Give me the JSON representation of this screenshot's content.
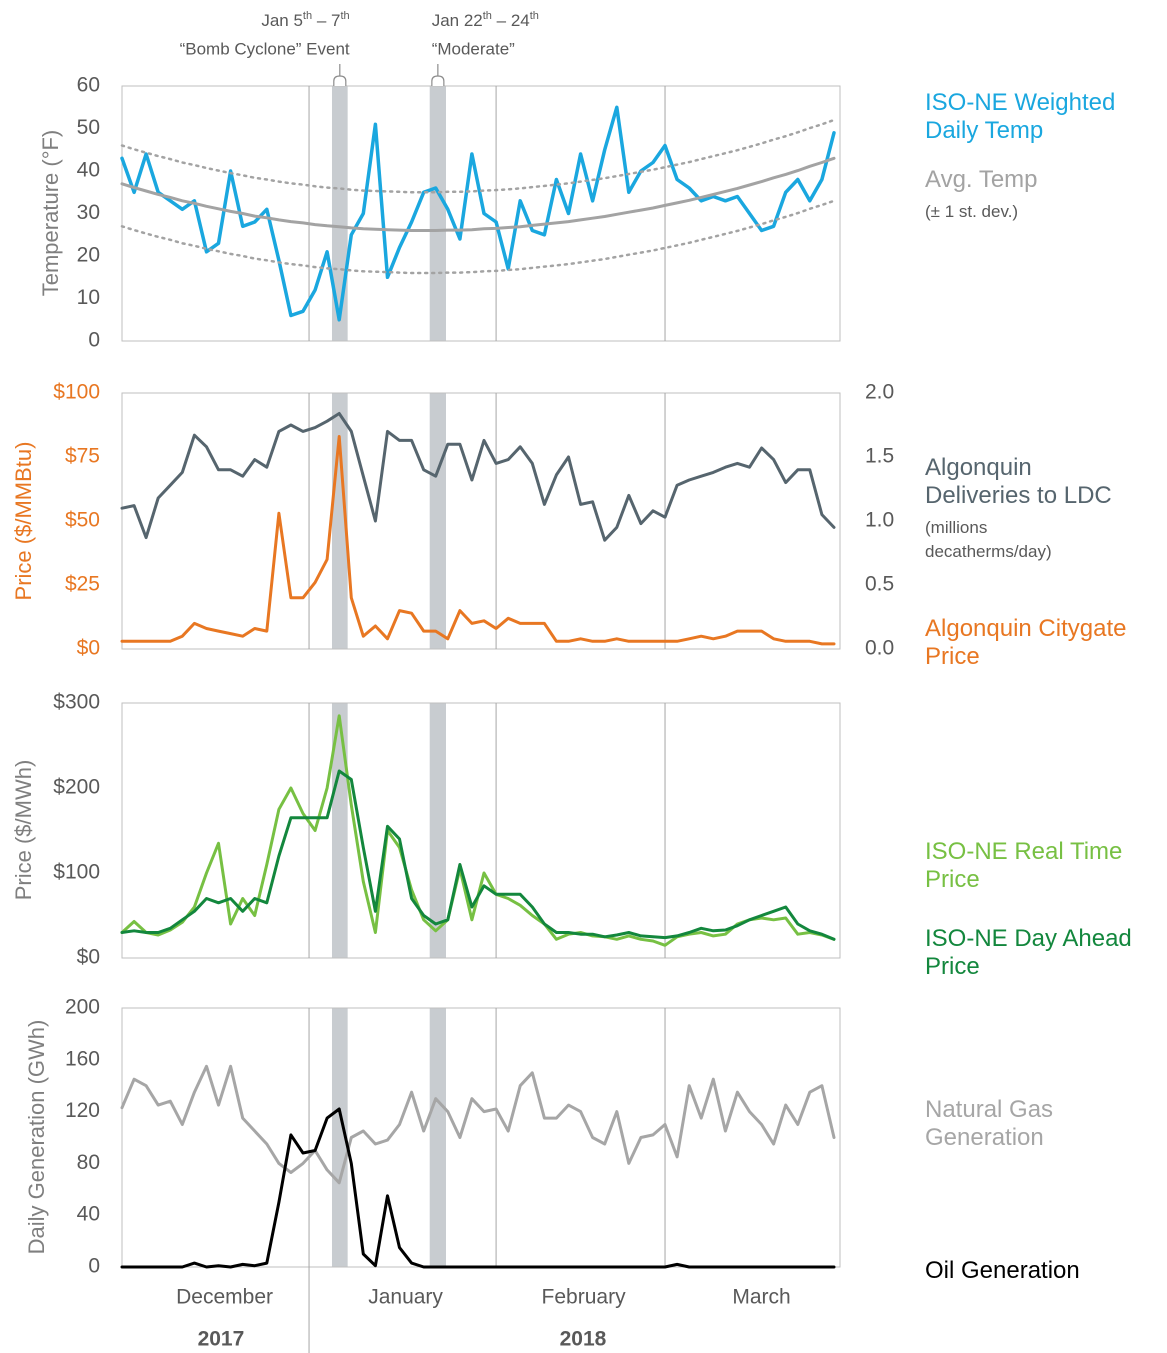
{
  "events": [
    {
      "label": [
        "Jan 5",
        "th",
        " – 7",
        "th"
      ],
      "sublabel": "“Bomb Cyclone” Event",
      "start": 34.8,
      "end": 37.4
    },
    {
      "label": [
        "Jan 22",
        "th",
        " – 24",
        "th"
      ],
      "sublabel": "“Moderate”",
      "start": 51,
      "end": 53.7
    }
  ],
  "chart_data": [
    {
      "type": "line",
      "ylabel": "Temperature (°F)",
      "x": [
        0,
        2,
        4,
        6,
        8,
        10,
        12,
        14,
        16,
        18,
        20,
        22,
        24,
        26,
        28,
        30,
        32,
        34,
        36,
        38,
        40,
        42,
        44,
        46,
        48,
        50,
        52,
        54,
        56,
        58,
        60,
        62,
        64,
        66,
        68,
        70,
        72,
        74,
        76,
        78,
        80,
        82,
        84,
        86,
        88,
        90,
        92,
        94,
        96,
        98,
        100,
        102,
        104,
        106,
        108,
        110,
        112,
        114,
        116,
        118
      ],
      "xlim": [
        0,
        119
      ],
      "xgrid": [
        31,
        62,
        90
      ],
      "ylim": [
        0,
        60
      ],
      "yticks": [
        0,
        10,
        20,
        30,
        40,
        50,
        60
      ],
      "series": [
        {
          "name": "ISO-NE Weighted\nDaily Temp",
          "color": "#1aa7df",
          "values": [
            43,
            35,
            44,
            35,
            33,
            31,
            33,
            21,
            23,
            40,
            27,
            28,
            31,
            19,
            6,
            7,
            12,
            21,
            5,
            25,
            30,
            51,
            15,
            22,
            28,
            35,
            36,
            31,
            24,
            44,
            30,
            28,
            17,
            33,
            26,
            25,
            38,
            30,
            44,
            33,
            45,
            55,
            35,
            40,
            42,
            46,
            38,
            36,
            33,
            34,
            33,
            34,
            30,
            26,
            27,
            35,
            38,
            33,
            38,
            49
          ]
        },
        {
          "name": "Avg. Temp",
          "note": "(± 1 st. dev.)",
          "color": "#a3a3a3",
          "values": [
            37,
            36.1,
            35.3,
            34.5,
            33.8,
            33,
            32.4,
            31.7,
            31.1,
            30.5,
            30,
            29.4,
            29,
            28.5,
            28.1,
            27.8,
            27.4,
            27.1,
            26.9,
            26.6,
            26.4,
            26.3,
            26.2,
            26.1,
            26,
            26,
            26,
            26.1,
            26.1,
            26.2,
            26.4,
            26.5,
            26.7,
            26.9,
            27.2,
            27.5,
            27.8,
            28.1,
            28.5,
            28.9,
            29.3,
            29.8,
            30.3,
            30.8,
            31.3,
            31.9,
            32.5,
            33.1,
            33.8,
            34.5,
            35.2,
            35.9,
            36.7,
            37.5,
            38.4,
            39.2,
            40.1,
            41.1,
            42,
            43
          ],
          "band_upper": [
            46,
            45.1,
            44.3,
            43.5,
            42.8,
            42,
            41.4,
            40.7,
            40.1,
            39.5,
            39,
            38.4,
            38,
            37.5,
            37.1,
            36.8,
            36.4,
            36.1,
            35.9,
            35.6,
            35.4,
            35.3,
            35.2,
            35.1,
            35,
            35,
            35,
            35.1,
            35.1,
            35.2,
            35.4,
            35.5,
            35.7,
            35.9,
            36.2,
            36.5,
            36.8,
            37.1,
            37.5,
            37.9,
            38.3,
            38.8,
            39.3,
            39.8,
            40.3,
            40.9,
            41.5,
            42.1,
            42.8,
            43.5,
            44.2,
            44.9,
            45.7,
            46.5,
            47.4,
            48.2,
            49.1,
            50.1,
            51,
            52
          ],
          "band_lower": [
            27,
            26.1,
            25.3,
            24.5,
            23.8,
            23,
            22.4,
            21.7,
            21.1,
            20.5,
            20,
            19.4,
            19,
            18.5,
            18.1,
            17.8,
            17.4,
            17.1,
            16.9,
            16.6,
            16.4,
            16.3,
            16.2,
            16.1,
            16,
            16,
            16,
            16.1,
            16.1,
            16.2,
            16.4,
            16.5,
            16.7,
            16.9,
            17.2,
            17.5,
            17.8,
            18.1,
            18.5,
            18.9,
            19.3,
            19.8,
            20.3,
            20.8,
            21.3,
            21.9,
            22.5,
            23.1,
            23.8,
            24.5,
            25.2,
            25.9,
            26.7,
            27.5,
            28.4,
            29.2,
            30.1,
            31.1,
            32,
            33
          ]
        }
      ]
    },
    {
      "type": "line",
      "ylabel": "Price ($/MMBtu)",
      "ylabel_color": "#e87722",
      "x": [
        0,
        2,
        4,
        6,
        8,
        10,
        12,
        14,
        16,
        18,
        20,
        22,
        24,
        26,
        28,
        30,
        32,
        34,
        36,
        38,
        40,
        42,
        44,
        46,
        48,
        50,
        52,
        54,
        56,
        58,
        60,
        62,
        64,
        66,
        68,
        70,
        72,
        74,
        76,
        78,
        80,
        82,
        84,
        86,
        88,
        90,
        92,
        94,
        96,
        98,
        100,
        102,
        104,
        106,
        108,
        110,
        112,
        114,
        116,
        118
      ],
      "xlim": [
        0,
        119
      ],
      "xgrid": [
        31,
        62,
        90
      ],
      "ylim": [
        0,
        100
      ],
      "yticks": [
        {
          "value": 0,
          "label": "$0"
        },
        {
          "value": 25,
          "label": "$25"
        },
        {
          "value": 50,
          "label": "$50"
        },
        {
          "value": 75,
          "label": "$75"
        },
        {
          "value": 100,
          "label": "$100"
        }
      ],
      "y2lim": [
        0,
        2
      ],
      "y2ticks": [
        {
          "value": 0,
          "label": "0.0"
        },
        0.5,
        {
          "value": 1,
          "label": "1.0"
        },
        1.5,
        {
          "value": 2,
          "label": "2.0"
        }
      ],
      "series": [
        {
          "name": "Algonquin\nDeliveries to LDC",
          "note": "(millions\ndecatherms/day)",
          "color": "#56656e",
          "axis": "y2",
          "values": [
            1.1,
            1.12,
            0.87,
            1.18,
            1.28,
            1.38,
            1.67,
            1.58,
            1.4,
            1.4,
            1.35,
            1.48,
            1.42,
            1.7,
            1.75,
            1.7,
            1.73,
            1.78,
            1.84,
            1.7,
            1.35,
            1,
            1.7,
            1.63,
            1.63,
            1.4,
            1.35,
            1.6,
            1.6,
            1.32,
            1.63,
            1.45,
            1.48,
            1.58,
            1.45,
            1.13,
            1.36,
            1.5,
            1.13,
            1.15,
            0.85,
            0.95,
            1.2,
            0.98,
            1.08,
            1.03,
            1.28,
            1.32,
            1.35,
            1.38,
            1.42,
            1.45,
            1.42,
            1.57,
            1.48,
            1.3,
            1.4,
            1.4,
            1.05,
            0.95
          ]
        },
        {
          "name": "Algonquin Citygate\nPrice",
          "color": "#e87722",
          "values": [
            3,
            3,
            3,
            3,
            3,
            5,
            10,
            8,
            7,
            6,
            5,
            8,
            7,
            53,
            20,
            20,
            26,
            35,
            83,
            20,
            5,
            9,
            4,
            15,
            14,
            7,
            7,
            4,
            15,
            10,
            11,
            8,
            12,
            10,
            10,
            10,
            3,
            3,
            4,
            3,
            3,
            4,
            3,
            3,
            3,
            3,
            3,
            4,
            5,
            4,
            5,
            7,
            7,
            7,
            4,
            3,
            3,
            3,
            2,
            2
          ]
        }
      ]
    },
    {
      "type": "line",
      "ylabel": "Price ($/MWh)",
      "x": [
        0,
        2,
        4,
        6,
        8,
        10,
        12,
        14,
        16,
        18,
        20,
        22,
        24,
        26,
        28,
        30,
        32,
        34,
        36,
        38,
        40,
        42,
        44,
        46,
        48,
        50,
        52,
        54,
        56,
        58,
        60,
        62,
        64,
        66,
        68,
        70,
        72,
        74,
        76,
        78,
        80,
        82,
        84,
        86,
        88,
        90,
        92,
        94,
        96,
        98,
        100,
        102,
        104,
        106,
        108,
        110,
        112,
        114,
        116,
        118
      ],
      "xlim": [
        0,
        119
      ],
      "xgrid": [
        31,
        62,
        90
      ],
      "ylim": [
        0,
        300
      ],
      "yticks": [
        {
          "value": 0,
          "label": "$0"
        },
        {
          "value": 100,
          "label": "$100"
        },
        {
          "value": 200,
          "label": "$200"
        },
        {
          "value": 300,
          "label": "$300"
        }
      ],
      "series": [
        {
          "name": "ISO-NE Real Time\nPrice",
          "color": "#77c043",
          "values": [
            30,
            43,
            30,
            27,
            33,
            42,
            60,
            100,
            135,
            40,
            70,
            50,
            110,
            175,
            200,
            170,
            150,
            200,
            285,
            180,
            90,
            30,
            150,
            130,
            80,
            45,
            32,
            45,
            105,
            45,
            100,
            75,
            70,
            62,
            50,
            40,
            22,
            28,
            30,
            26,
            25,
            22,
            26,
            22,
            20,
            15,
            25,
            28,
            30,
            26,
            28,
            40,
            45,
            47,
            45,
            47,
            28,
            30,
            27,
            22
          ]
        },
        {
          "name": "ISO-NE Day Ahead\nPrice",
          "color": "#13873d",
          "values": [
            30,
            32,
            30,
            30,
            35,
            45,
            55,
            70,
            65,
            70,
            55,
            70,
            65,
            120,
            165,
            165,
            165,
            165,
            220,
            210,
            130,
            55,
            155,
            140,
            70,
            50,
            40,
            45,
            110,
            60,
            85,
            75,
            75,
            75,
            60,
            40,
            30,
            30,
            28,
            28,
            25,
            27,
            30,
            26,
            25,
            24,
            26,
            30,
            35,
            32,
            33,
            38,
            45,
            50,
            55,
            60,
            40,
            32,
            28,
            22
          ]
        }
      ]
    },
    {
      "type": "line",
      "ylabel": "Daily Generation (GWh)",
      "x": [
        0,
        2,
        4,
        6,
        8,
        10,
        12,
        14,
        16,
        18,
        20,
        22,
        24,
        26,
        28,
        30,
        32,
        34,
        36,
        38,
        40,
        42,
        44,
        46,
        48,
        50,
        52,
        54,
        56,
        58,
        60,
        62,
        64,
        66,
        68,
        70,
        72,
        74,
        76,
        78,
        80,
        82,
        84,
        86,
        88,
        90,
        92,
        94,
        96,
        98,
        100,
        102,
        104,
        106,
        108,
        110,
        112,
        114,
        116,
        118
      ],
      "xlim": [
        0,
        119
      ],
      "xgrid": [
        31,
        62,
        90
      ],
      "ylim": [
        0,
        200
      ],
      "yticks": [
        0,
        40,
        80,
        120,
        160,
        200
      ],
      "xticks": [
        {
          "value": 17,
          "label": "December"
        },
        {
          "value": 47,
          "label": "January"
        },
        {
          "value": 76.5,
          "label": "February"
        },
        {
          "value": 106,
          "label": "March"
        }
      ],
      "year_ticks": [
        {
          "value": 16.4,
          "label": "2017"
        },
        {
          "value": 76.4,
          "label": "2018"
        }
      ],
      "year_divider": 31,
      "series": [
        {
          "name": "Natural Gas\nGeneration",
          "color": "#a6a6a6",
          "values": [
            123,
            145,
            140,
            125,
            128,
            110,
            135,
            155,
            125,
            155,
            115,
            105,
            95,
            80,
            73,
            80,
            90,
            75,
            65,
            100,
            105,
            95,
            98,
            110,
            135,
            105,
            130,
            120,
            100,
            130,
            120,
            122,
            105,
            140,
            150,
            115,
            115,
            125,
            120,
            100,
            95,
            120,
            80,
            100,
            102,
            110,
            85,
            140,
            115,
            145,
            105,
            135,
            120,
            110,
            95,
            125,
            110,
            135,
            140,
            100
          ]
        },
        {
          "name": "Oil Generation",
          "color": "#000000",
          "values": [
            0,
            0,
            0,
            0,
            0,
            0,
            3,
            0,
            1,
            0,
            2,
            1,
            3,
            50,
            102,
            88,
            90,
            115,
            122,
            80,
            10,
            1,
            55,
            15,
            3,
            0,
            0,
            0,
            0,
            0,
            0,
            0,
            0,
            0,
            0,
            0,
            0,
            0,
            0,
            0,
            0,
            0,
            0,
            0,
            0,
            0,
            2,
            0,
            0,
            0,
            0,
            0,
            0,
            0,
            0,
            0,
            0,
            0,
            0,
            0
          ]
        }
      ]
    }
  ]
}
